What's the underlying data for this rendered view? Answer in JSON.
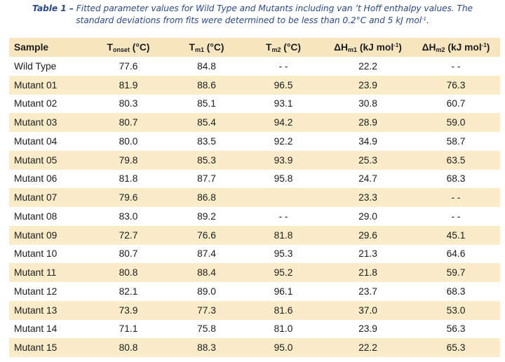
{
  "caption": {
    "label": "Table 1 –",
    "line1": " Fitted parameter values for Wild Type and Mutants including van ’t Hoff enthalpy values. The",
    "line2": "standard deviations from fits were determined to be less than 0.2°C and 5 kJ mol",
    "line2_sup": "-1",
    "line2_end": "."
  },
  "table": {
    "headers": [
      {
        "main": "Sample"
      },
      {
        "main": "T",
        "sub": "onset",
        "tail": " (°C)"
      },
      {
        "main": "T",
        "sub": "m1",
        "tail": " (°C)"
      },
      {
        "main": "T",
        "sub": "m2",
        "tail": " (°C)"
      },
      {
        "main": "ΔH",
        "sub": "m1",
        "tail": " (kJ mol",
        "sup": "-1",
        "end": ")"
      },
      {
        "main": "ΔH",
        "sub": "m2",
        "tail": " (kJ mol",
        "sup": "-1",
        "end": ")"
      }
    ],
    "rows": [
      [
        "Wild Type",
        "77.6",
        "84.8",
        "- -",
        "22.2",
        "- -"
      ],
      [
        "Mutant 01",
        "81.9",
        "88.6",
        "96.5",
        "23.9",
        "76.3"
      ],
      [
        "Mutant 02",
        "80.3",
        "85.1",
        "93.1",
        "30.8",
        "60.7"
      ],
      [
        "Mutant 03",
        "80.7",
        "85.4",
        "94.2",
        "28.9",
        "59.0"
      ],
      [
        "Mutant 04",
        "80.0",
        "83.5",
        "92.2",
        "34.9",
        "58.7"
      ],
      [
        "Mutant 05",
        "79.8",
        "85.3",
        "93.9",
        "25.3",
        "63.5"
      ],
      [
        "Mutant 06",
        "81.8",
        "87.7",
        "95.8",
        "24.7",
        "68.3"
      ],
      [
        "Mutant 07",
        "79.6",
        "86.8",
        "",
        "23.3",
        "- -"
      ],
      [
        "Mutant 08",
        "83.0",
        "89.2",
        "- -",
        "29.0",
        "- -"
      ],
      [
        "Mutant 09",
        "72.7",
        "76.6",
        "81.8",
        "29.6",
        "45.1"
      ],
      [
        "Mutant 10",
        "80.7",
        "87.4",
        "95.3",
        "21.3",
        "64.6"
      ],
      [
        "Mutant 11",
        "80.8",
        "88.4",
        "95.2",
        "21.8",
        "59.7"
      ],
      [
        "Mutant 12",
        "82.1",
        "89.0",
        "96.1",
        "23.7",
        "68.3"
      ],
      [
        "Mutant 13",
        "73.9",
        "77.3",
        "81.6",
        "37.0",
        "53.0"
      ],
      [
        "Mutant 14",
        "71.1",
        "75.8",
        "81.0",
        "23.9",
        "56.3"
      ],
      [
        "Mutant 15",
        "80.8",
        "88.3",
        "95.0",
        "22.2",
        "65.3"
      ]
    ]
  },
  "colors": {
    "caption_text": "#2e4b82",
    "header_fill": "#f8e6c1",
    "stripe_fill": "#faecc9",
    "body_text": "#1c1c1c"
  }
}
